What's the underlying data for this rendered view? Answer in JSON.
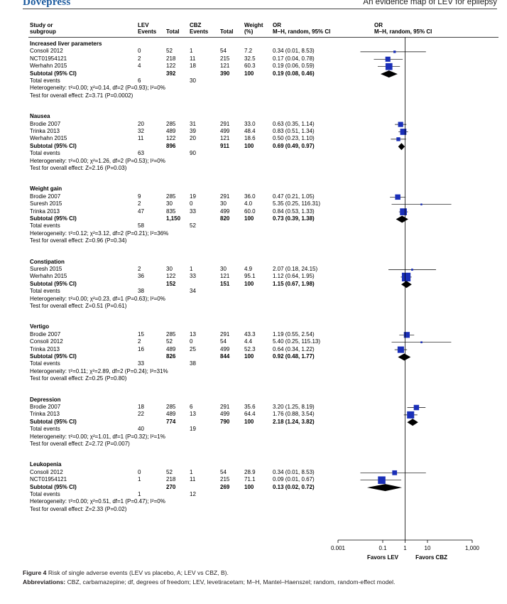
{
  "header": {
    "logo": "Dovepress",
    "running_title": "An evidence map of LEV for epilepsy"
  },
  "columns": {
    "study": [
      "Study or",
      "subgroup"
    ],
    "e1": [
      "LEV",
      "Events"
    ],
    "t1": [
      "",
      "Total"
    ],
    "e2": [
      "CBZ",
      "Events"
    ],
    "t2": [
      "",
      "Total"
    ],
    "weight": [
      "Weight",
      "(%)"
    ],
    "or": [
      "OR",
      "M–H, random, 95% CI"
    ],
    "or_plot": [
      "OR",
      "M–H, random, 95% CI"
    ]
  },
  "groups": [
    {
      "title": "Increased liver parameters",
      "rows": [
        {
          "study": "Consoli 2012",
          "e1": "0",
          "t1": "52",
          "e2": "1",
          "t2": "54",
          "w": "7.2",
          "ci": "0.34 (0.01, 8.53)"
        },
        {
          "study": "NCT01954121",
          "e1": "2",
          "t1": "218",
          "e2": "11",
          "t2": "215",
          "w": "32.5",
          "ci": "0.17 (0.04, 0.78)"
        },
        {
          "study": "Werhahn 2015",
          "e1": "4",
          "t1": "122",
          "e2": "18",
          "t2": "121",
          "w": "60.3",
          "ci": "0.19 (0.06, 0.59)"
        }
      ],
      "subtotal": {
        "label": "Subtotal (95% CI)",
        "t1": "392",
        "t2": "390",
        "w": "100",
        "ci": "0.19 (0.08, 0.46)"
      },
      "total_events": {
        "label": "Total events",
        "e1": "6",
        "e2": "30"
      },
      "heterogeneity": "Heterogeneity: τ²=0.00; χ²=0.14, df=2 (P=0.93); I²=0%",
      "overall": "Test for overall effect: Z=3.71 (P=0.0002)"
    },
    {
      "title": "Nausea",
      "rows": [
        {
          "study": "Brodie 2007",
          "e1": "20",
          "t1": "285",
          "e2": "31",
          "t2": "291",
          "w": "33.0",
          "ci": "0.63 (0.35, 1.14)"
        },
        {
          "study": "Trinka 2013",
          "e1": "32",
          "t1": "489",
          "e2": "39",
          "t2": "499",
          "w": "48.4",
          "ci": "0.83 (0.51, 1.34)"
        },
        {
          "study": "Werhahn 2015",
          "e1": "11",
          "t1": "122",
          "e2": "20",
          "t2": "121",
          "w": "18.6",
          "ci": "0.50 (0.23, 1.10)"
        }
      ],
      "subtotal": {
        "label": "Subtotal (95% CI)",
        "t1": "896",
        "t2": "911",
        "w": "100",
        "ci": "0.69 (0.49, 0.97)"
      },
      "total_events": {
        "label": "Total events",
        "e1": "63",
        "e2": "90"
      },
      "heterogeneity": "Heterogeneity: τ²=0.00; χ²=1.26, df=2 (P=0.53); I²=0%",
      "overall": "Test for overall effect: Z=2.16 (P=0.03)"
    },
    {
      "title": "Weight gain",
      "rows": [
        {
          "study": "Brodie 2007",
          "e1": "9",
          "t1": "285",
          "e2": "19",
          "t2": "291",
          "w": "36.0",
          "ci": "0.47 (0.21, 1.05)"
        },
        {
          "study": "Suresh 2015",
          "e1": "2",
          "t1": "30",
          "e2": "0",
          "t2": "30",
          "w": "4.0",
          "ci": "5.35 (0.25, 116.31)"
        },
        {
          "study": "Trinka 2013",
          "e1": "47",
          "t1": "835",
          "e2": "33",
          "t2": "499",
          "w": "60.0",
          "ci": "0.84 (0.53, 1.33)"
        }
      ],
      "subtotal": {
        "label": "Subtotal (95% CI)",
        "t1": "1,150",
        "t2": "820",
        "w": "100",
        "ci": "0.73 (0.39, 1.38)"
      },
      "total_events": {
        "label": "Total events",
        "e1": "58",
        "e2": "52"
      },
      "heterogeneity": "Heterogeneity: τ²=0.12; χ²=3.12, df=2 (P=0.21); I²=36%",
      "overall": "Test for overall effect: Z=0.96 (P=0.34)"
    },
    {
      "title": "Constipation",
      "rows": [
        {
          "study": "Suresh 2015",
          "e1": "2",
          "t1": "30",
          "e2": "1",
          "t2": "30",
          "w": "4.9",
          "ci": "2.07 (0.18, 24.15)"
        },
        {
          "study": "Werhahn 2015",
          "e1": "36",
          "t1": "122",
          "e2": "33",
          "t2": "121",
          "w": "95.1",
          "ci": "1.12 (0.64, 1.95)"
        }
      ],
      "subtotal": {
        "label": "Subtotal (95% CI)",
        "t1": "152",
        "t2": "151",
        "w": "100",
        "ci": "1.15 (0.67, 1.98)"
      },
      "total_events": {
        "label": "Total events",
        "e1": "38",
        "e2": "34"
      },
      "heterogeneity": "Heterogeneity: τ²=0.00; χ²=0.23, df=1 (P=0.63); I²=0%",
      "overall": "Test for overall effect: Z=0.51 (P=0.61)"
    },
    {
      "title": "Vertigo",
      "rows": [
        {
          "study": "Brodie 2007",
          "e1": "15",
          "t1": "285",
          "e2": "13",
          "t2": "291",
          "w": "43.3",
          "ci": "1.19 (0.55, 2.54)"
        },
        {
          "study": "Consoli 2012",
          "e1": "2",
          "t1": "52",
          "e2": "0",
          "t2": "54",
          "w": "4.4",
          "ci": "5.40 (0.25, 115.13)"
        },
        {
          "study": "Trinka 2013",
          "e1": "16",
          "t1": "489",
          "e2": "25",
          "t2": "499",
          "w": "52.3",
          "ci": "0.64 (0.34, 1.22)"
        }
      ],
      "subtotal": {
        "label": "Subtotal (95% CI)",
        "t1": "826",
        "t2": "844",
        "w": "100",
        "ci": "0.92 (0.48, 1.77)"
      },
      "total_events": {
        "label": "Total events",
        "e1": "33",
        "e2": "38"
      },
      "heterogeneity": "Heterogeneity: τ²=0.11; χ²=2.89, df=2 (P=0.24); I²=31%",
      "overall": "Test for overall effect: Z=0.25 (P=0.80)"
    },
    {
      "title": "Depression",
      "rows": [
        {
          "study": "Brodie 2007",
          "e1": "18",
          "t1": "285",
          "e2": "6",
          "t2": "291",
          "w": "35.6",
          "ci": "3.20 (1.25, 8.19)"
        },
        {
          "study": "Trinka 2013",
          "e1": "22",
          "t1": "489",
          "e2": "13",
          "t2": "499",
          "w": "64.4",
          "ci": "1.76 (0.88, 3.54)"
        }
      ],
      "subtotal": {
        "label": "Subtotal (95% CI)",
        "t1": "774",
        "t2": "790",
        "w": "100",
        "ci": "2.18 (1.24, 3.82)"
      },
      "total_events": {
        "label": "Total events",
        "e1": "40",
        "e2": "19"
      },
      "heterogeneity": "Heterogeneity: τ²=0.00; χ²=1.01, df=1 (P=0.32); I²=1%",
      "overall": "Test for overall effect: Z=2.72 (P=0.007)"
    },
    {
      "title": "Leukopenia",
      "rows": [
        {
          "study": "Consoli 2012",
          "e1": "0",
          "t1": "52",
          "e2": "1",
          "t2": "54",
          "w": "28.9",
          "ci": "0.34 (0.01, 8.53)"
        },
        {
          "study": "NCT01954121",
          "e1": "1",
          "t1": "218",
          "e2": "11",
          "t2": "215",
          "w": "71.1",
          "ci": "0.09 (0.01, 0.67)"
        }
      ],
      "subtotal": {
        "label": "Subtotal (95% CI)",
        "t1": "270",
        "t2": "269",
        "w": "100",
        "ci": "0.13 (0.02, 0.72)"
      },
      "total_events": {
        "label": "Total events",
        "e1": "1",
        "e2": "12"
      },
      "heterogeneity": "Heterogeneity: τ²=0.00; χ²=0.51, df=1 (P=0.47); I²=0%",
      "overall": "Test for overall effect: Z=2.33 (P=0.02)"
    }
  ],
  "axis": {
    "ticks": [
      "0.001",
      "0.1",
      "1",
      "10",
      "1,000"
    ],
    "favors_left": "Favors LEV",
    "favors_right": "Favors CBZ"
  },
  "caption": {
    "figure_label": "Figure 4",
    "figure_text": "Risk of single adverse events (LEV vs placebo, A; LEV vs CBZ, B).",
    "abbr_label": "Abbreviations:",
    "abbr_text": "CBZ, carbamazepine; df, degrees of freedom; LEV, levetiracetam; M–H, Mantel–Haenszel; random, random-effect model."
  },
  "colors": {
    "marker": "#1a2fb8",
    "diamond": "#000000",
    "logo": "#1b5a9e"
  },
  "chart_data": {
    "type": "forest",
    "xscale": "log",
    "xlim": [
      0.001,
      1000
    ],
    "xticks": [
      0.001,
      0.1,
      1,
      10,
      1000
    ],
    "xlabel_left": "Favors LEV",
    "xlabel_right": "Favors CBZ",
    "subgroups": [
      {
        "name": "Increased liver parameters",
        "studies": [
          {
            "study": "Consoli 2012",
            "or": 0.34,
            "lo": 0.01,
            "hi": 8.53,
            "weight": 7.2
          },
          {
            "study": "NCT01954121",
            "or": 0.17,
            "lo": 0.04,
            "hi": 0.78,
            "weight": 32.5
          },
          {
            "study": "Werhahn 2015",
            "or": 0.19,
            "lo": 0.06,
            "hi": 0.59,
            "weight": 60.3
          }
        ],
        "pooled": {
          "or": 0.19,
          "lo": 0.08,
          "hi": 0.46
        }
      },
      {
        "name": "Nausea",
        "studies": [
          {
            "study": "Brodie 2007",
            "or": 0.63,
            "lo": 0.35,
            "hi": 1.14,
            "weight": 33.0
          },
          {
            "study": "Trinka 2013",
            "or": 0.83,
            "lo": 0.51,
            "hi": 1.34,
            "weight": 48.4
          },
          {
            "study": "Werhahn 2015",
            "or": 0.5,
            "lo": 0.23,
            "hi": 1.1,
            "weight": 18.6
          }
        ],
        "pooled": {
          "or": 0.69,
          "lo": 0.49,
          "hi": 0.97
        }
      },
      {
        "name": "Weight gain",
        "studies": [
          {
            "study": "Brodie 2007",
            "or": 0.47,
            "lo": 0.21,
            "hi": 1.05,
            "weight": 36.0
          },
          {
            "study": "Suresh 2015",
            "or": 5.35,
            "lo": 0.25,
            "hi": 116.31,
            "weight": 4.0
          },
          {
            "study": "Trinka 2013",
            "or": 0.84,
            "lo": 0.53,
            "hi": 1.33,
            "weight": 60.0
          }
        ],
        "pooled": {
          "or": 0.73,
          "lo": 0.39,
          "hi": 1.38
        }
      },
      {
        "name": "Constipation",
        "studies": [
          {
            "study": "Suresh 2015",
            "or": 2.07,
            "lo": 0.18,
            "hi": 24.15,
            "weight": 4.9
          },
          {
            "study": "Werhahn 2015",
            "or": 1.12,
            "lo": 0.64,
            "hi": 1.95,
            "weight": 95.1
          }
        ],
        "pooled": {
          "or": 1.15,
          "lo": 0.67,
          "hi": 1.98
        }
      },
      {
        "name": "Vertigo",
        "studies": [
          {
            "study": "Brodie 2007",
            "or": 1.19,
            "lo": 0.55,
            "hi": 2.54,
            "weight": 43.3
          },
          {
            "study": "Consoli 2012",
            "or": 5.4,
            "lo": 0.25,
            "hi": 115.13,
            "weight": 4.4
          },
          {
            "study": "Trinka 2013",
            "or": 0.64,
            "lo": 0.34,
            "hi": 1.22,
            "weight": 52.3
          }
        ],
        "pooled": {
          "or": 0.92,
          "lo": 0.48,
          "hi": 1.77
        }
      },
      {
        "name": "Depression",
        "studies": [
          {
            "study": "Brodie 2007",
            "or": 3.2,
            "lo": 1.25,
            "hi": 8.19,
            "weight": 35.6
          },
          {
            "study": "Trinka 2013",
            "or": 1.76,
            "lo": 0.88,
            "hi": 3.54,
            "weight": 64.4
          }
        ],
        "pooled": {
          "or": 2.18,
          "lo": 1.24,
          "hi": 3.82
        }
      },
      {
        "name": "Leukopenia",
        "studies": [
          {
            "study": "Consoli 2012",
            "or": 0.34,
            "lo": 0.01,
            "hi": 8.53,
            "weight": 28.9
          },
          {
            "study": "NCT01954121",
            "or": 0.09,
            "lo": 0.01,
            "hi": 0.67,
            "weight": 71.1
          }
        ],
        "pooled": {
          "or": 0.13,
          "lo": 0.02,
          "hi": 0.72
        }
      }
    ]
  }
}
